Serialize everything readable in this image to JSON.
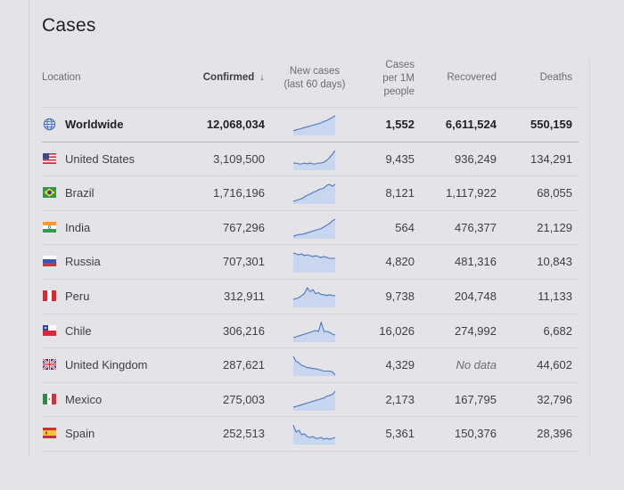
{
  "title": "Cases",
  "columns": {
    "location": "Location",
    "confirmed": "Confirmed",
    "sort_arrow": "↓",
    "new_cases_line1": "New cases",
    "new_cases_line2": "(last 60 days)",
    "per_million_line1": "Cases",
    "per_million_line2": "per 1M",
    "per_million_line3": "people",
    "recovered": "Recovered",
    "deaths": "Deaths"
  },
  "colors": {
    "spark_line": "#4a76c2",
    "spark_fill": "#c8d7ef",
    "background": "#e4e3e8"
  },
  "rows": [
    {
      "icon": "globe-icon",
      "location": "Worldwide",
      "confirmed": "12,068,034",
      "per_million": "1,552",
      "recovered": "6,611,524",
      "deaths": "550,159",
      "trend": [
        6,
        7,
        8,
        9,
        10,
        11,
        12,
        13,
        14,
        15,
        16,
        18,
        19,
        21,
        23,
        25
      ]
    },
    {
      "icon": "us-flag-icon",
      "location": "United States",
      "confirmed": "3,109,500",
      "per_million": "9,435",
      "recovered": "936,249",
      "deaths": "134,291",
      "trend": [
        8,
        8,
        7,
        7,
        8,
        7,
        8,
        7,
        7,
        8,
        8,
        9,
        11,
        14,
        18,
        22
      ]
    },
    {
      "icon": "brazil-flag-icon",
      "location": "Brazil",
      "confirmed": "1,716,196",
      "per_million": "8,121",
      "recovered": "1,117,922",
      "deaths": "68,055",
      "trend": [
        3,
        4,
        5,
        6,
        8,
        10,
        11,
        13,
        14,
        16,
        17,
        18,
        21,
        22,
        20,
        22
      ]
    },
    {
      "icon": "india-flag-icon",
      "location": "India",
      "confirmed": "767,296",
      "per_million": "564",
      "recovered": "476,377",
      "deaths": "21,129",
      "trend": [
        3,
        4,
        5,
        5,
        6,
        7,
        8,
        9,
        10,
        11,
        12,
        14,
        16,
        18,
        21,
        23
      ]
    },
    {
      "icon": "russia-flag-icon",
      "location": "Russia",
      "confirmed": "707,301",
      "per_million": "4,820",
      "recovered": "481,316",
      "deaths": "10,843",
      "trend": [
        22,
        21,
        20,
        21,
        19,
        20,
        19,
        18,
        19,
        18,
        17,
        18,
        17,
        16,
        16,
        16
      ]
    },
    {
      "icon": "peru-flag-icon",
      "location": "Peru",
      "confirmed": "312,911",
      "per_million": "9,738",
      "recovered": "204,748",
      "deaths": "11,133",
      "trend": [
        8,
        9,
        10,
        12,
        14,
        20,
        16,
        18,
        14,
        15,
        13,
        13,
        12,
        13,
        12,
        12
      ]
    },
    {
      "icon": "chile-flag-icon",
      "location": "Chile",
      "confirmed": "306,216",
      "per_million": "16,026",
      "recovered": "274,992",
      "deaths": "6,682",
      "trend": [
        5,
        6,
        7,
        8,
        9,
        10,
        11,
        12,
        13,
        12,
        22,
        12,
        12,
        11,
        9,
        8
      ]
    },
    {
      "icon": "uk-flag-icon",
      "location": "United Kingdom",
      "confirmed": "287,621",
      "per_million": "4,329",
      "recovered": "No data",
      "deaths": "44,602",
      "trend": [
        24,
        18,
        16,
        13,
        12,
        10,
        10,
        9,
        9,
        8,
        7,
        6,
        6,
        6,
        5,
        1
      ]
    },
    {
      "icon": "mexico-flag-icon",
      "location": "Mexico",
      "confirmed": "275,003",
      "per_million": "2,173",
      "recovered": "167,795",
      "deaths": "32,796",
      "trend": [
        4,
        5,
        6,
        7,
        8,
        9,
        10,
        11,
        12,
        13,
        14,
        15,
        17,
        18,
        19,
        23
      ]
    },
    {
      "icon": "spain-flag-icon",
      "location": "Spain",
      "confirmed": "252,513",
      "per_million": "5,361",
      "recovered": "150,376",
      "deaths": "28,396",
      "trend": [
        22,
        14,
        16,
        11,
        12,
        9,
        8,
        9,
        7,
        7,
        8,
        6,
        7,
        6,
        7,
        8
      ]
    }
  ]
}
